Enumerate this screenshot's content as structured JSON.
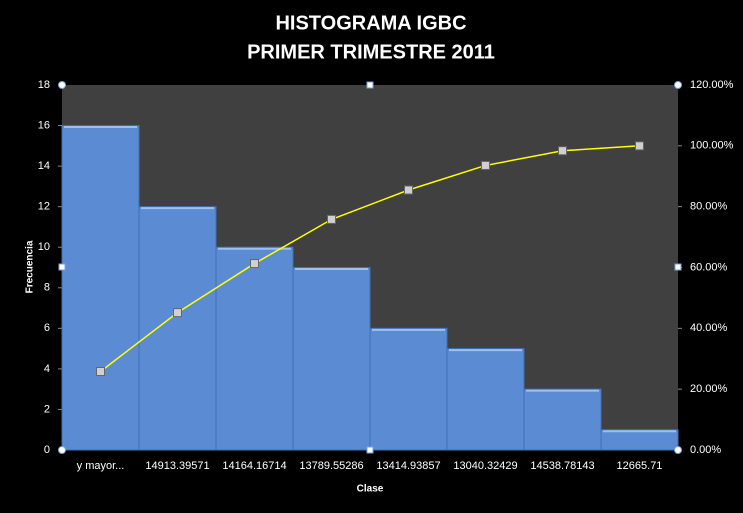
{
  "chart_data": {
    "type": "pareto",
    "title": "HISTOGRAMA IGBC",
    "subtitle": "PRIMER TRIMESTRE 2011",
    "x_label": "Clase",
    "y_label": "Frecuencia",
    "categories": [
      "y mayor...",
      "14913.39571",
      "14164.16714",
      "13789.55286",
      "13414.93857",
      "13040.32429",
      "14538.78143",
      "12665.71"
    ],
    "series": [
      {
        "type": "bar",
        "color": "#5b8bd3",
        "values": [
          16,
          12,
          10,
          9,
          6,
          5,
          3,
          1
        ]
      },
      {
        "type": "line",
        "color": "#ffff00",
        "axis": "y2",
        "values": [
          25.81,
          45.16,
          61.29,
          75.81,
          85.48,
          93.55,
          98.39,
          100
        ]
      }
    ],
    "ylim": [
      0,
      18
    ],
    "yticks": [
      0,
      2,
      4,
      6,
      8,
      10,
      12,
      14,
      16,
      18
    ],
    "y2lim": [
      0,
      120
    ],
    "y2ticks": [
      {
        "value": 0,
        "label": "0.00%"
      },
      {
        "value": 20,
        "label": "20.00%"
      },
      {
        "value": 40,
        "label": "40.00%"
      },
      {
        "value": 60,
        "label": "60.00%"
      },
      {
        "value": 80,
        "label": "80.00%"
      },
      {
        "value": 100,
        "label": "100.00%"
      },
      {
        "value": 120,
        "label": "120.00%"
      }
    ],
    "grid": false
  }
}
